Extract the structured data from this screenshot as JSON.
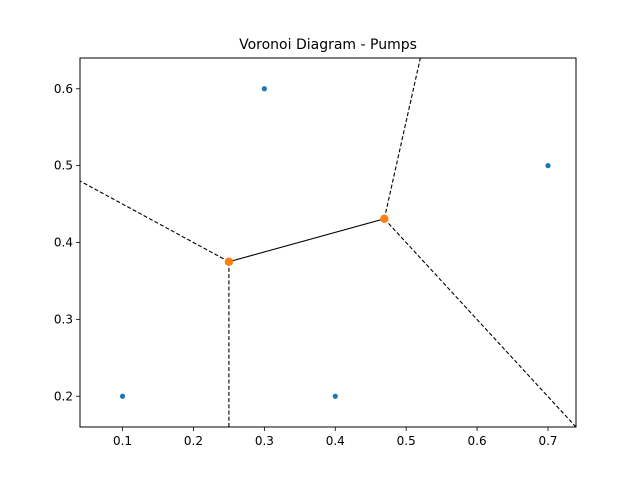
{
  "chart_data": {
    "type": "scatter",
    "title": "Voronoi Diagram - Pumps",
    "xlabel": "",
    "ylabel": "",
    "xlim": [
      0.04,
      0.7395
    ],
    "ylim": [
      0.16,
      0.64
    ],
    "x_ticks": [
      0.1,
      0.2,
      0.3,
      0.4,
      0.5,
      0.6,
      0.7
    ],
    "y_ticks": [
      0.2,
      0.3,
      0.4,
      0.5,
      0.6
    ],
    "grid": false,
    "legend": "none",
    "points": [
      {
        "x": 0.1,
        "y": 0.2
      },
      {
        "x": 0.3,
        "y": 0.6
      },
      {
        "x": 0.4,
        "y": 0.2
      },
      {
        "x": 0.7,
        "y": 0.5
      }
    ],
    "vertices": [
      {
        "x": 0.25,
        "y": 0.375
      },
      {
        "x": 0.4692,
        "y": 0.4308
      }
    ],
    "finite_edges": [
      [
        [
          0.25,
          0.375
        ],
        [
          0.4692,
          0.4308
        ]
      ]
    ],
    "infinite_edges": [
      [
        [
          0.25,
          0.375
        ],
        [
          0.04,
          0.48
        ]
      ],
      [
        [
          0.25,
          0.375
        ],
        [
          0.25,
          0.16
        ]
      ],
      [
        [
          0.4692,
          0.4308
        ],
        [
          0.52,
          0.64
        ]
      ],
      [
        [
          0.4692,
          0.4308
        ],
        [
          0.7395,
          0.16
        ]
      ]
    ],
    "colors": {
      "points": "#1f77b4",
      "vertices": "#ff7f0e",
      "edges": "#000000"
    }
  }
}
